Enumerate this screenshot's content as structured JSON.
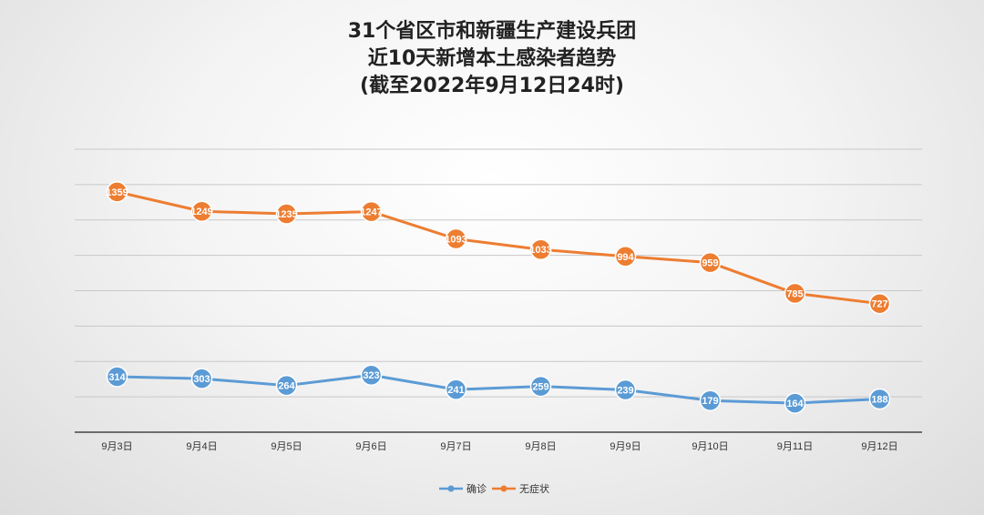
{
  "chart_data": {
    "type": "line",
    "title_lines": [
      "31个省区市和新疆生产建设兵团",
      "近10天新增本土感染者趋势",
      "(截至2022年9月12日24时)"
    ],
    "categories": [
      "9月3日",
      "9月4日",
      "9月5日",
      "9月6日",
      "9月7日",
      "9月8日",
      "9月9日",
      "9月10日",
      "9月11日",
      "9月12日"
    ],
    "series": [
      {
        "name": "确诊",
        "color": "#5b9bd5",
        "values": [
          314,
          303,
          264,
          323,
          241,
          259,
          239,
          179,
          164,
          188
        ]
      },
      {
        "name": "无症状",
        "color": "#ed7d31",
        "values": [
          1359,
          1249,
          1235,
          1247,
          1093,
          1033,
          994,
          959,
          785,
          727
        ]
      }
    ],
    "ylim": [
      0,
      1600
    ],
    "grid": true,
    "legend": "bottom"
  }
}
